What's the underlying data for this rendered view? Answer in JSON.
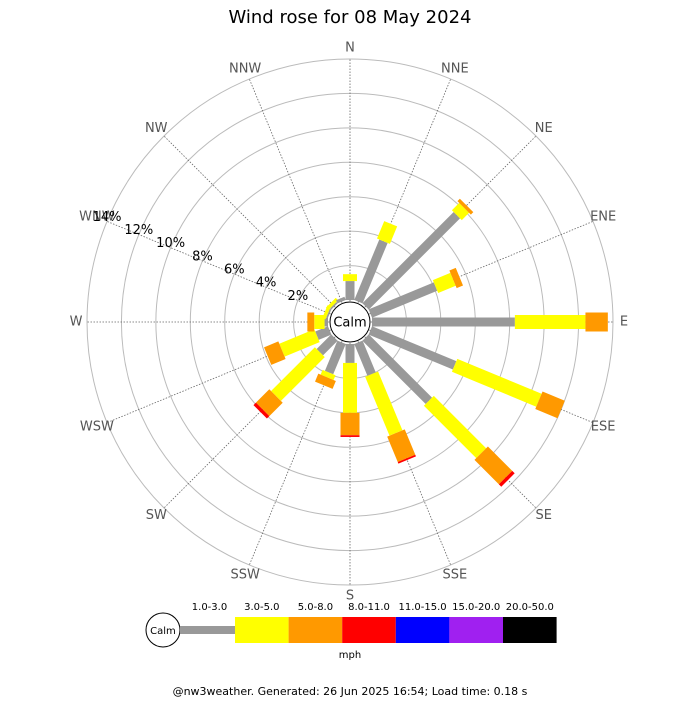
{
  "chart_data": {
    "type": "wind-rose",
    "title": "Wind rose for 08 May 2024",
    "categories": [
      "N",
      "NNE",
      "NE",
      "ENE",
      "E",
      "ESE",
      "SE",
      "SSE",
      "S",
      "SSW",
      "SW",
      "WSW",
      "W",
      "WNW",
      "NW",
      "NNW"
    ],
    "rlim": [
      0,
      14
    ],
    "rticks": [
      {
        "value": 2,
        "label": "2%"
      },
      {
        "value": 4,
        "label": "4%"
      },
      {
        "value": 6,
        "label": "6%"
      },
      {
        "value": 8,
        "label": "8%"
      },
      {
        "value": 10,
        "label": "10%"
      },
      {
        "value": 12,
        "label": "12%"
      },
      {
        "value": 14,
        "label": "14%"
      }
    ],
    "calm_label": "Calm",
    "series": [
      {
        "name": "1.0-3.0",
        "color": "#999999",
        "values": [
          1.1,
          3.8,
          7.5,
          4.1,
          8.3,
          5.3,
          5.2,
          2.0,
          1.1,
          1.9,
          1.2,
          0.8,
          0.2,
          0.1,
          0.1,
          0.2
        ]
      },
      {
        "name": "3.0-5.0",
        "color": "#ffff00",
        "values": [
          0.4,
          1.1,
          0.6,
          1.1,
          4.1,
          5.3,
          4.3,
          3.7,
          2.9,
          0.3,
          3.6,
          2.2,
          0.6,
          0.2,
          0.2,
          0
        ]
      },
      {
        "name": "5.0-8.0",
        "color": "#ff9900",
        "values": [
          0,
          0,
          0.2,
          0.4,
          1.3,
          1.4,
          2.0,
          1.6,
          1.3,
          0.5,
          1.1,
          0.9,
          0.4,
          0,
          0,
          0
        ]
      },
      {
        "name": "8.0-11.0",
        "color": "#ff0000",
        "values": [
          0,
          0,
          0,
          0,
          0,
          0,
          0.2,
          0.1,
          0.1,
          0,
          0.2,
          0,
          0,
          0,
          0,
          0
        ]
      },
      {
        "name": "11.0-15.0",
        "color": "#0000ff",
        "values": [
          0,
          0,
          0,
          0,
          0,
          0,
          0,
          0,
          0,
          0,
          0,
          0,
          0,
          0,
          0,
          0
        ]
      },
      {
        "name": "15.0-20.0",
        "color": "#a020f0",
        "values": [
          0,
          0,
          0,
          0,
          0,
          0,
          0,
          0,
          0,
          0,
          0,
          0,
          0,
          0,
          0,
          0
        ]
      },
      {
        "name": "20.0-50.0",
        "color": "#000000",
        "values": [
          0,
          0,
          0,
          0,
          0,
          0,
          0,
          0,
          0,
          0,
          0,
          0,
          0,
          0,
          0,
          0
        ]
      }
    ],
    "units": "mph",
    "footer": "@nw3weather. Generated: 26 Jun 2025 16:54; Load time: 0.18 s"
  }
}
